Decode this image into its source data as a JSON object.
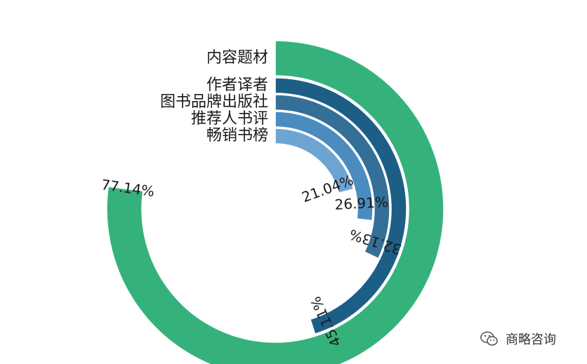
{
  "chart_data": {
    "type": "radial-bar",
    "categories": [
      "内容题材",
      "作者译者",
      "图书品牌出版社",
      "推荐人书评",
      "畅销书榜"
    ],
    "values": [
      77.14,
      45.11,
      32.13,
      26.91,
      21.04
    ],
    "value_labels": [
      "77.14%",
      "45.11%",
      "32.13%",
      "26.91%",
      "21.04%"
    ],
    "max": 100,
    "colors": [
      "#35b27b",
      "#1c5e86",
      "#336f97",
      "#4a8cbf",
      "#6ea4d2"
    ],
    "title": "",
    "legend": "none"
  },
  "watermark": {
    "text": "商略咨询",
    "icon": "wechat-icon"
  }
}
